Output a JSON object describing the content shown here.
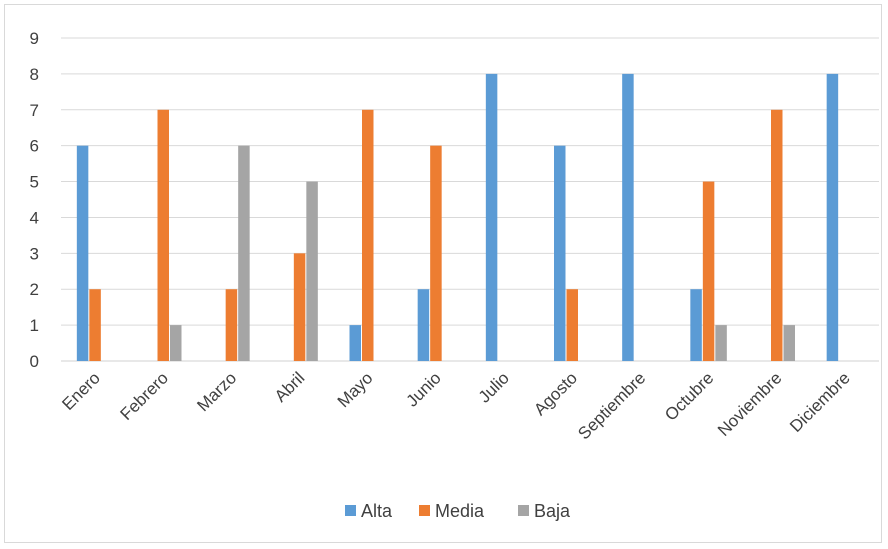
{
  "chart_data": {
    "type": "bar",
    "categories": [
      "Enero",
      "Febrero",
      "Marzo",
      "Abril",
      "Mayo",
      "Junio",
      "Julio",
      "Agosto",
      "Septiembre",
      "Octubre",
      "Noviembre",
      "Diciembre"
    ],
    "series": [
      {
        "name": "Alta",
        "color": "#5b9bd5",
        "values": [
          6,
          0,
          0,
          0,
          1,
          2,
          8,
          6,
          8,
          2,
          0,
          8
        ]
      },
      {
        "name": "Media",
        "color": "#ed7d31",
        "values": [
          2,
          7,
          2,
          3,
          7,
          6,
          0,
          2,
          0,
          5,
          7,
          0
        ]
      },
      {
        "name": "Baja",
        "color": "#a5a5a5",
        "values": [
          0,
          1,
          6,
          5,
          0,
          0,
          0,
          0,
          0,
          1,
          1,
          0
        ]
      }
    ],
    "ylim": [
      0,
      9
    ],
    "yticks": [
      0,
      1,
      2,
      3,
      4,
      5,
      6,
      7,
      8,
      9
    ],
    "grid": true,
    "legend_position": "bottom"
  }
}
